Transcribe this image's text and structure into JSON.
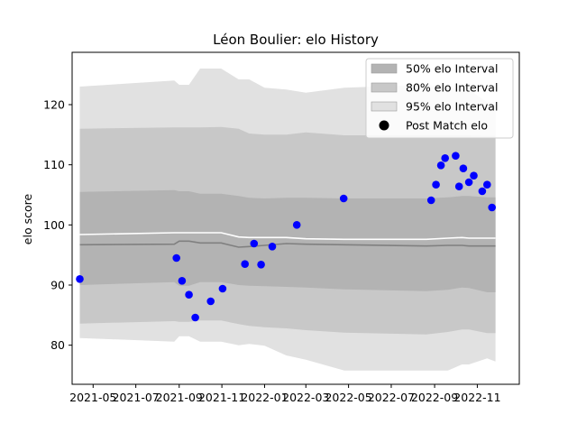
{
  "chart_data": {
    "type": "line",
    "title": "Léon Boulier: elo History",
    "xlabel": "",
    "ylabel": "elo score",
    "x_ticks": [
      "2021-05",
      "2021-07",
      "2021-09",
      "2021-11",
      "2022-01",
      "2022-03",
      "2022-05",
      "2022-07",
      "2022-09",
      "2022-11"
    ],
    "y_ticks": [
      80,
      90,
      100,
      110,
      120
    ],
    "xlim": [
      "2021-04-01",
      "2022-12-31"
    ],
    "ylim": [
      73.5,
      128.7
    ],
    "legend_position": "upper-right",
    "legend": [
      {
        "label": "50% elo Interval",
        "color": "#b3b3b3",
        "kind": "patch"
      },
      {
        "label": "80% elo Interval",
        "color": "#c8c8c8",
        "kind": "patch"
      },
      {
        "label": "95% elo Interval",
        "color": "#e1e1e1",
        "kind": "patch"
      },
      {
        "label": "Post Match elo",
        "color": "#000000",
        "kind": "marker"
      }
    ],
    "bands": {
      "x": [
        "2021-04-12",
        "2021-08-25",
        "2021-09-01",
        "2021-09-15",
        "2021-10-01",
        "2021-10-31",
        "2021-11-25",
        "2021-12-10",
        "2022-01-01",
        "2022-02-01",
        "2022-03-01",
        "2022-04-25",
        "2022-08-20",
        "2022-09-20",
        "2022-10-10",
        "2022-10-20",
        "2022-11-15",
        "2022-11-27"
      ],
      "median": [
        96.7,
        96.8,
        97.3,
        97.3,
        97.0,
        97.0,
        96.3,
        96.4,
        96.6,
        96.9,
        96.8,
        96.7,
        96.5,
        96.6,
        96.6,
        96.5,
        96.5,
        96.5
      ],
      "mean": [
        98.4,
        98.7,
        98.7,
        98.7,
        98.7,
        98.7,
        98.0,
        97.9,
        97.9,
        97.9,
        97.7,
        97.6,
        97.6,
        97.8,
        97.9,
        97.8,
        97.8,
        97.8
      ],
      "p50_low": [
        90.0,
        90.5,
        89.9,
        89.9,
        90.5,
        90.5,
        90.0,
        89.9,
        89.8,
        89.7,
        89.6,
        89.3,
        89.0,
        89.2,
        89.6,
        89.5,
        88.8,
        88.8
      ],
      "p50_high": [
        105.5,
        105.8,
        105.6,
        105.6,
        105.2,
        105.2,
        104.8,
        104.5,
        104.4,
        104.5,
        104.5,
        104.4,
        104.4,
        104.6,
        104.8,
        104.8,
        104.6,
        104.6
      ],
      "p80_low": [
        83.6,
        84.0,
        83.9,
        83.9,
        84.1,
        84.1,
        83.5,
        83.2,
        83.0,
        82.8,
        82.5,
        82.1,
        81.8,
        82.2,
        82.6,
        82.6,
        82.0,
        82.0
      ],
      "p80_high": [
        116.0,
        116.2,
        116.2,
        116.2,
        116.2,
        116.3,
        116.0,
        115.2,
        115.0,
        115.0,
        115.4,
        114.9,
        114.9,
        114.9,
        114.9,
        114.9,
        114.8,
        114.8
      ],
      "p95_low": [
        81.2,
        80.6,
        81.5,
        81.5,
        80.6,
        80.6,
        80.0,
        80.2,
        79.9,
        78.3,
        77.6,
        75.8,
        75.8,
        75.8,
        76.8,
        76.8,
        77.8,
        77.3
      ],
      "p95_high": [
        123.0,
        124.0,
        123.3,
        123.3,
        126.0,
        126.0,
        124.2,
        124.2,
        122.8,
        122.5,
        122.0,
        122.8,
        123.3,
        122.8,
        122.5,
        122.5,
        120.4,
        120.4
      ]
    },
    "series": [
      {
        "name": "Post Match elo",
        "color": "#0000ff",
        "x": [
          "2021-04-12",
          "2021-08-28",
          "2021-09-05",
          "2021-09-15",
          "2021-09-24",
          "2021-10-16",
          "2021-11-02",
          "2021-12-04",
          "2021-12-17",
          "2021-12-27",
          "2022-01-12",
          "2022-02-16",
          "2022-04-24",
          "2022-08-27",
          "2022-09-03",
          "2022-09-10",
          "2022-09-16",
          "2022-10-01",
          "2022-10-06",
          "2022-10-12",
          "2022-10-20",
          "2022-10-27",
          "2022-11-08",
          "2022-11-15",
          "2022-11-22"
        ],
        "y": [
          91.0,
          94.5,
          90.7,
          88.4,
          84.6,
          87.3,
          89.4,
          93.5,
          96.9,
          93.4,
          96.4,
          100.0,
          104.4,
          104.1,
          106.7,
          109.9,
          111.1,
          111.5,
          106.4,
          109.4,
          107.1,
          108.2,
          105.6,
          106.7,
          102.9
        ]
      }
    ]
  }
}
